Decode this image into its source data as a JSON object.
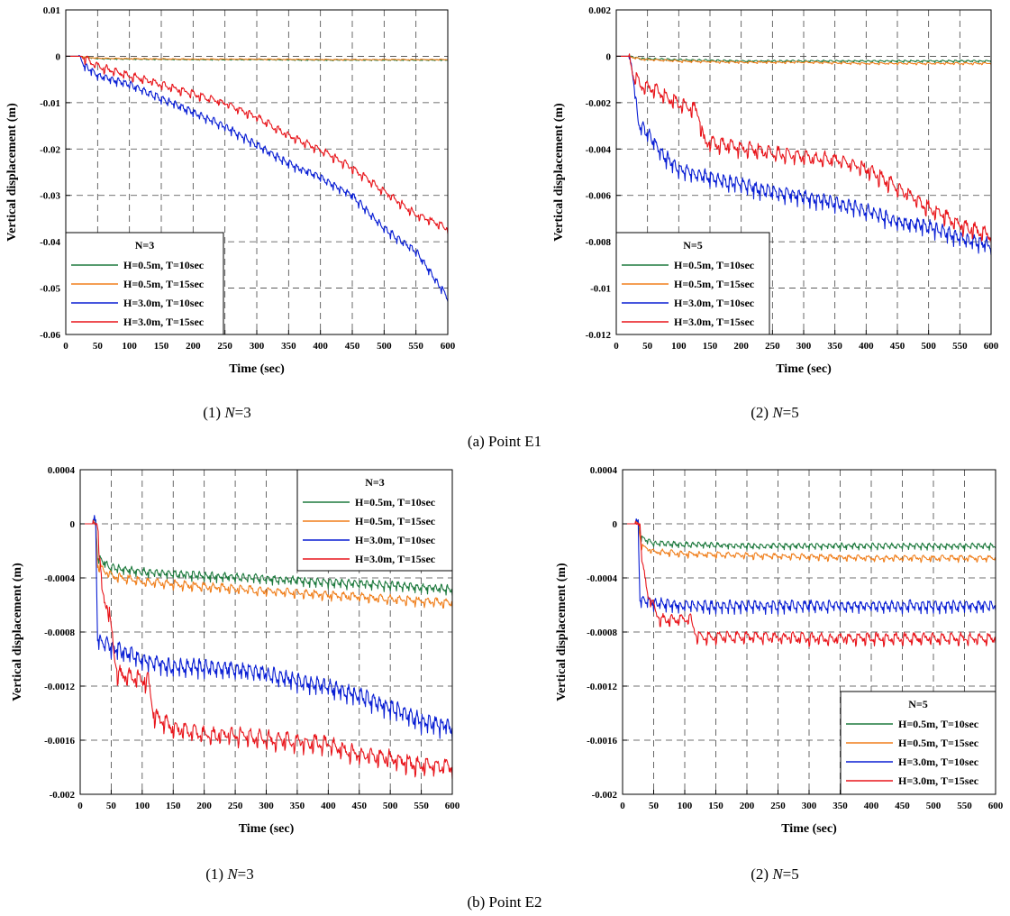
{
  "chart_data": [
    {
      "type": "line",
      "caption_prefix": "(1)",
      "caption_var": "N",
      "caption_value": "=3",
      "xlabel": "Time (sec)",
      "ylabel": "Vertical displacement (m)",
      "xlim": [
        0,
        600
      ],
      "ylim": [
        -0.06,
        0.01
      ],
      "xticks": [
        0,
        50,
        100,
        150,
        200,
        250,
        300,
        350,
        400,
        450,
        500,
        550,
        600
      ],
      "xtick_labels": [
        "0",
        "50",
        "100",
        "150",
        "200",
        "250",
        "300",
        "350",
        "400",
        "450",
        "500",
        "550",
        "600"
      ],
      "yticks": [
        0.01,
        0,
        -0.01,
        -0.02,
        -0.03,
        -0.04,
        -0.05,
        -0.06
      ],
      "ytick_labels": [
        "0.01",
        "0",
        "-0.01",
        "-0.02",
        "-0.03",
        "-0.04",
        "-0.05",
        "-0.06"
      ],
      "grid": true,
      "legend_title": "N=3",
      "legend_position": "bottom-left",
      "series": [
        {
          "name": "H=0.5m, T=10sec",
          "color": "#1e7a3e",
          "x": [
            0,
            20,
            50,
            100,
            200,
            300,
            400,
            500,
            600
          ],
          "y": [
            0,
            0,
            -0.0005,
            -0.0006,
            -0.0007,
            -0.0007,
            -0.0008,
            -0.0008,
            -0.0008
          ],
          "noise": 0.0001,
          "period": 10
        },
        {
          "name": "H=0.5m, T=15sec",
          "color": "#f07f1c",
          "x": [
            0,
            20,
            50,
            100,
            200,
            300,
            400,
            500,
            600
          ],
          "y": [
            0,
            0,
            -0.0004,
            -0.0005,
            -0.0006,
            -0.0006,
            -0.0007,
            -0.0007,
            -0.0007
          ],
          "noise": 0.0001,
          "period": 15
        },
        {
          "name": "H=3.0m, T=10sec",
          "color": "#0a1fd4",
          "x": [
            0,
            20,
            30,
            50,
            100,
            150,
            200,
            250,
            300,
            350,
            400,
            450,
            500,
            550,
            600
          ],
          "y": [
            0,
            0,
            -0.002,
            -0.004,
            -0.006,
            -0.009,
            -0.012,
            -0.015,
            -0.019,
            -0.023,
            -0.026,
            -0.03,
            -0.037,
            -0.042,
            -0.052
          ],
          "noise": 0.0008,
          "period": 10
        },
        {
          "name": "H=3.0m, T=15sec",
          "color": "#e8151b",
          "x": [
            0,
            25,
            50,
            100,
            150,
            200,
            250,
            300,
            350,
            400,
            450,
            500,
            550,
            600
          ],
          "y": [
            0,
            0,
            -0.002,
            -0.004,
            -0.006,
            -0.008,
            -0.01,
            -0.013,
            -0.017,
            -0.02,
            -0.024,
            -0.029,
            -0.034,
            -0.037
          ],
          "noise": 0.0008,
          "period": 15
        }
      ]
    },
    {
      "type": "line",
      "caption_prefix": "(2)",
      "caption_var": "N",
      "caption_value": "=5",
      "xlabel": "Time (sec)",
      "ylabel": "Vertical displacement (m)",
      "xlim": [
        0,
        600
      ],
      "ylim": [
        -0.012,
        0.002
      ],
      "xticks": [
        0,
        50,
        100,
        150,
        200,
        250,
        300,
        350,
        400,
        450,
        500,
        550,
        600
      ],
      "xtick_labels": [
        "0",
        "50",
        "100",
        "150",
        "200",
        "250",
        "300",
        "350",
        "400",
        "450",
        "500",
        "550",
        "600"
      ],
      "yticks": [
        0.002,
        0,
        -0.002,
        -0.004,
        -0.006,
        -0.008,
        -0.01,
        -0.012
      ],
      "ytick_labels": [
        "0.002",
        "0",
        "-0.002",
        "-0.004",
        "-0.006",
        "-0.008",
        "-0.01",
        "-0.012"
      ],
      "grid": true,
      "legend_title": "N=5",
      "legend_position": "bottom-left",
      "series": [
        {
          "name": "H=0.5m, T=10sec",
          "color": "#1e7a3e",
          "x": [
            0,
            20,
            40,
            100,
            200,
            300,
            400,
            500,
            600
          ],
          "y": [
            0,
            0,
            -0.0001,
            -0.00015,
            -0.0002,
            -0.0002,
            -0.0002,
            -0.0002,
            -0.0002
          ],
          "noise": 4e-05,
          "period": 10
        },
        {
          "name": "H=0.5m, T=15sec",
          "color": "#f07f1c",
          "x": [
            0,
            20,
            40,
            100,
            200,
            300,
            400,
            500,
            600
          ],
          "y": [
            0,
            0,
            -0.00012,
            -0.0002,
            -0.00025,
            -0.00025,
            -0.0003,
            -0.0003,
            -0.0003
          ],
          "noise": 4e-05,
          "period": 15
        },
        {
          "name": "H=3.0m, T=10sec",
          "color": "#0a1fd4",
          "x": [
            0,
            20,
            28,
            35,
            50,
            75,
            100,
            150,
            200,
            250,
            300,
            350,
            400,
            450,
            500,
            550,
            600
          ],
          "y": [
            0,
            0,
            -0.001,
            -0.0028,
            -0.0033,
            -0.0042,
            -0.0048,
            -0.0052,
            -0.0055,
            -0.0058,
            -0.006,
            -0.0063,
            -0.0066,
            -0.0071,
            -0.0073,
            -0.0078,
            -0.0081
          ],
          "noise": 0.0003,
          "period": 10
        },
        {
          "name": "H=3.0m, T=15sec",
          "color": "#e8151b",
          "x": [
            0,
            20,
            28,
            40,
            60,
            100,
            130,
            140,
            200,
            250,
            300,
            350,
            400,
            450,
            500,
            550,
            600
          ],
          "y": [
            0,
            0,
            -0.0008,
            -0.0012,
            -0.0014,
            -0.002,
            -0.0023,
            -0.0036,
            -0.0039,
            -0.0041,
            -0.0043,
            -0.0044,
            -0.0048,
            -0.0056,
            -0.0065,
            -0.0072,
            -0.0077
          ],
          "noise": 0.0003,
          "period": 15
        }
      ]
    },
    {
      "type": "line",
      "caption_prefix": "(1)",
      "caption_var": "N",
      "caption_value": "=3",
      "xlabel": "Time (sec)",
      "ylabel": "Vertical displacement (m)",
      "xlim": [
        0,
        600
      ],
      "ylim": [
        -0.002,
        0.0004
      ],
      "xticks": [
        0,
        50,
        100,
        150,
        200,
        250,
        300,
        350,
        400,
        450,
        500,
        550,
        600
      ],
      "xtick_labels": [
        "0",
        "50",
        "100",
        "150",
        "200",
        "250",
        "300",
        "350",
        "400",
        "450",
        "500",
        "550",
        "600"
      ],
      "yticks": [
        0.0004,
        0,
        -0.0004,
        -0.0008,
        -0.0012,
        -0.0016,
        -0.002
      ],
      "ytick_labels": [
        "0.0004",
        "0",
        "-0.0004",
        "-0.0008",
        "-0.0012",
        "-0.0016",
        "-0.002"
      ],
      "grid": true,
      "legend_title": "N=3",
      "legend_position": "top-right",
      "series": [
        {
          "name": "H=0.5m, T=10sec",
          "color": "#1e7a3e",
          "x": [
            0,
            20,
            25,
            28,
            50,
            100,
            200,
            300,
            400,
            500,
            600
          ],
          "y": [
            0,
            0,
            2e-05,
            -0.00024,
            -0.00032,
            -0.00035,
            -0.00038,
            -0.0004,
            -0.00043,
            -0.00045,
            -0.00048
          ],
          "noise": 3e-05,
          "period": 10
        },
        {
          "name": "H=0.5m, T=15sec",
          "color": "#f07f1c",
          "x": [
            0,
            20,
            25,
            28,
            50,
            100,
            200,
            300,
            400,
            500,
            600
          ],
          "y": [
            0,
            0,
            2e-05,
            -0.0003,
            -0.00038,
            -0.00042,
            -0.00046,
            -0.00049,
            -0.00052,
            -0.00055,
            -0.00058
          ],
          "noise": 3e-05,
          "period": 15
        },
        {
          "name": "H=3.0m, T=10sec",
          "color": "#0a1fd4",
          "x": [
            0,
            20,
            25,
            28,
            50,
            100,
            150,
            200,
            250,
            300,
            350,
            400,
            450,
            500,
            550,
            600
          ],
          "y": [
            0,
            0,
            2e-05,
            -0.00085,
            -0.0009,
            -0.001,
            -0.00105,
            -0.00105,
            -0.00107,
            -0.0011,
            -0.00115,
            -0.0012,
            -0.00126,
            -0.00135,
            -0.00145,
            -0.0015
          ],
          "noise": 6e-05,
          "period": 10
        },
        {
          "name": "H=3.0m, T=15sec",
          "color": "#e8151b",
          "x": [
            0,
            20,
            28,
            35,
            45,
            60,
            110,
            118,
            150,
            200,
            250,
            300,
            350,
            400,
            450,
            500,
            550,
            600
          ],
          "y": [
            0,
            0,
            2e-05,
            -0.0005,
            -0.0006,
            -0.0011,
            -0.00115,
            -0.0014,
            -0.0015,
            -0.00155,
            -0.00155,
            -0.00158,
            -0.0016,
            -0.00162,
            -0.0017,
            -0.00172,
            -0.00178,
            -0.00178
          ],
          "noise": 6e-05,
          "period": 15
        }
      ]
    },
    {
      "type": "line",
      "caption_prefix": "(2)",
      "caption_var": "N",
      "caption_value": "=5",
      "xlabel": "Time (sec)",
      "ylabel": "Vertical displacement (m)",
      "xlim": [
        0,
        600
      ],
      "ylim": [
        -0.002,
        0.0004
      ],
      "xticks": [
        0,
        50,
        100,
        150,
        200,
        250,
        300,
        350,
        400,
        450,
        500,
        550,
        600
      ],
      "xtick_labels": [
        "0",
        "50",
        "100",
        "150",
        "200",
        "250",
        "300",
        "350",
        "400",
        "450",
        "500",
        "550",
        "600"
      ],
      "yticks": [
        0.0004,
        0,
        -0.0004,
        -0.0008,
        -0.0012,
        -0.0016,
        -0.002
      ],
      "ytick_labels": [
        "0.0004",
        "0",
        "-0.0004",
        "-0.0008",
        "-0.0012",
        "-0.0016",
        "-0.002"
      ],
      "grid": true,
      "legend_title": "N=5",
      "legend_position": "bottom-right",
      "series": [
        {
          "name": "H=0.5m, T=10sec",
          "color": "#1e7a3e",
          "x": [
            0,
            20,
            25,
            30,
            50,
            100,
            200,
            300,
            400,
            500,
            600
          ],
          "y": [
            0,
            0,
            2e-05,
            -0.0001,
            -0.00014,
            -0.00015,
            -0.00016,
            -0.00016,
            -0.00016,
            -0.00016,
            -0.00016
          ],
          "noise": 2e-05,
          "period": 10
        },
        {
          "name": "H=0.5m, T=15sec",
          "color": "#f07f1c",
          "x": [
            0,
            20,
            25,
            30,
            50,
            100,
            200,
            300,
            400,
            500,
            600
          ],
          "y": [
            0,
            0,
            2e-05,
            -0.00016,
            -0.0002,
            -0.00022,
            -0.00023,
            -0.00024,
            -0.00025,
            -0.00025,
            -0.00025
          ],
          "noise": 2e-05,
          "period": 15
        },
        {
          "name": "H=3.0m, T=10sec",
          "color": "#0a1fd4",
          "x": [
            0,
            20,
            25,
            28,
            50,
            100,
            200,
            300,
            400,
            500,
            600
          ],
          "y": [
            0,
            0,
            2e-05,
            -0.00055,
            -0.00058,
            -0.0006,
            -0.0006,
            -0.0006,
            -0.0006,
            -0.0006,
            -0.0006
          ],
          "noise": 4e-05,
          "period": 10
        },
        {
          "name": "H=3.0m, T=15sec",
          "color": "#e8151b",
          "x": [
            0,
            20,
            28,
            32,
            40,
            60,
            110,
            120,
            200,
            300,
            400,
            500,
            600
          ],
          "y": [
            0,
            0,
            2e-05,
            -0.0003,
            -0.0005,
            -0.0007,
            -0.0007,
            -0.00083,
            -0.00083,
            -0.00084,
            -0.00084,
            -0.00084,
            -0.00084
          ],
          "noise": 4e-05,
          "period": 15
        }
      ]
    }
  ],
  "sections": [
    {
      "label": "(a)  Point  E1"
    },
    {
      "label": "(b)  Point  E2"
    }
  ]
}
